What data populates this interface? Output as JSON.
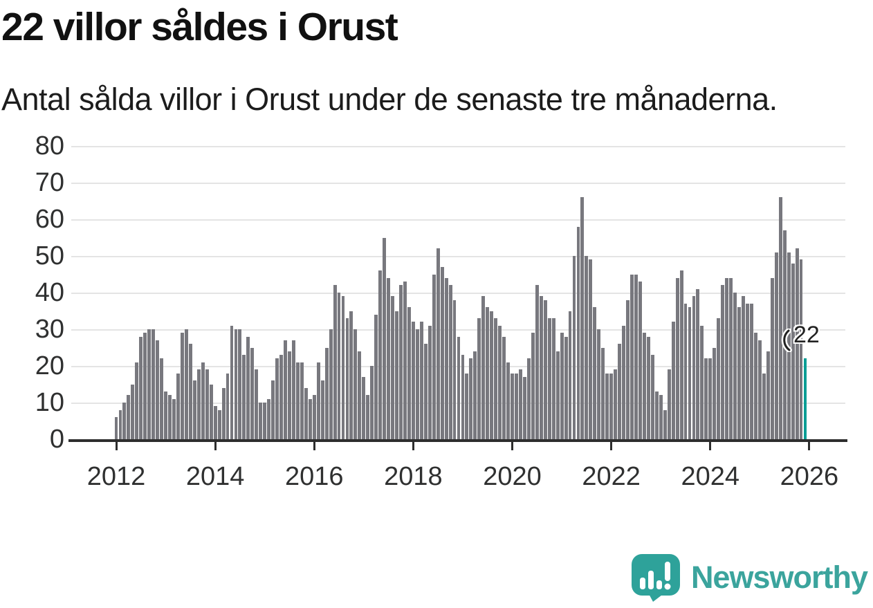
{
  "title": "22 villor såldes i Orust",
  "subtitle": "Antal sålda villor i Orust under de senaste tre månaderna.",
  "annotation": {
    "label": "22"
  },
  "branding": {
    "name": "Newsworthy",
    "text_color": "#3ba49d",
    "icon_color": "#2ea29a",
    "icon": "newsworthy-speech-bubble-bar-chart-icon"
  },
  "chart_data": {
    "type": "bar",
    "title": "22 villor såldes i Orust",
    "subtitle": "Antal sålda villor i Orust under de senaste tre månaderna.",
    "x_unit": "month",
    "x_start": "2012-01",
    "x_end": "2025-12",
    "x_tick_labels": [
      "2012",
      "2014",
      "2016",
      "2018",
      "2020",
      "2022",
      "2024",
      "2026"
    ],
    "y_tick_labels": [
      "0",
      "10",
      "20",
      "30",
      "40",
      "50",
      "60",
      "70",
      "80"
    ],
    "ylim": [
      0,
      80
    ],
    "grid": true,
    "legend": false,
    "bar_color": "#78787e",
    "values": [
      6,
      8,
      10,
      12,
      15,
      21,
      28,
      29,
      30,
      30,
      27,
      22,
      13,
      12,
      11,
      18,
      29,
      30,
      26,
      16,
      19,
      21,
      19,
      15,
      9,
      8,
      14,
      18,
      31,
      30,
      30,
      23,
      28,
      25,
      19,
      10,
      10,
      11,
      16,
      22,
      23,
      27,
      24,
      27,
      21,
      21,
      14,
      11,
      12,
      21,
      16,
      25,
      30,
      42,
      40,
      39,
      33,
      35,
      30,
      24,
      17,
      12,
      20,
      34,
      46,
      55,
      44,
      39,
      35,
      42,
      43,
      36,
      32,
      30,
      32,
      26,
      31,
      45,
      52,
      47,
      44,
      42,
      38,
      28,
      23,
      18,
      22,
      24,
      33,
      39,
      36,
      35,
      33,
      31,
      28,
      21,
      18,
      18,
      19,
      17,
      22,
      29,
      42,
      39,
      38,
      33,
      33,
      24,
      29,
      28,
      35,
      50,
      58,
      66,
      50,
      49,
      36,
      30,
      25,
      18,
      18,
      19,
      26,
      31,
      38,
      45,
      45,
      43,
      29,
      28,
      23,
      13,
      12,
      8,
      19,
      32,
      44,
      46,
      37,
      36,
      39,
      41,
      31,
      22,
      22,
      25,
      33,
      42,
      44,
      44,
      40,
      36,
      39,
      37,
      37,
      29,
      27,
      18,
      24,
      44,
      51,
      66,
      57,
      51,
      48,
      52,
      49,
      22
    ],
    "highlight": {
      "index": 167,
      "value": 22,
      "label": "22",
      "color": "#0a9e95"
    }
  }
}
